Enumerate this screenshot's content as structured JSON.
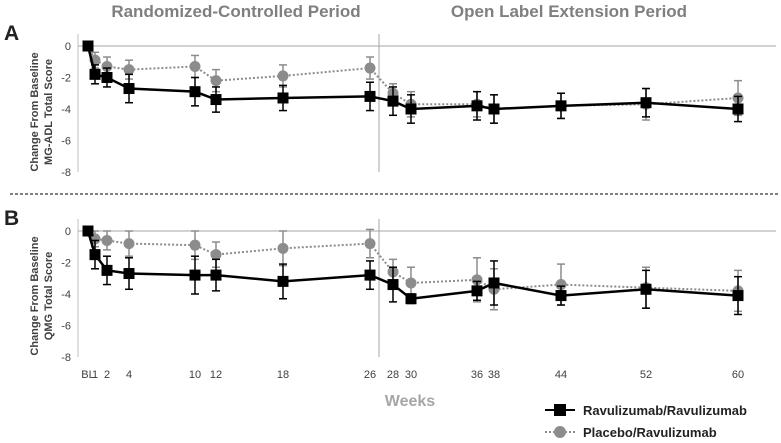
{
  "header": {
    "left_period": "Randomized-Controlled Period",
    "right_period": "Open Label Extension Period"
  },
  "x_axis_label": "Weeks",
  "colors": {
    "ravulizumab": "#000000",
    "placebo": "#8c8c8c",
    "period_divider": "#a6a6a6",
    "zero_line": "#a6a6a6"
  },
  "legend": [
    {
      "label": "Ravulizumab/Ravulizumab",
      "marker": "square",
      "line": "solid"
    },
    {
      "label": "Placebo/Ravulizumab",
      "marker": "circle",
      "line": "dotted"
    }
  ],
  "chart_data": [
    {
      "panel": "A",
      "type": "line",
      "ylabel": [
        "Change From Baseline",
        "MG-ADL Total Score"
      ],
      "xlabel": "Weeks",
      "ylim": [
        -8,
        0
      ],
      "yticks": [
        0,
        -2,
        -4,
        -6,
        -8
      ],
      "xticks": [
        "BL",
        "1",
        "2",
        "4",
        "10",
        "12",
        "18",
        "26",
        "28",
        "30",
        "36",
        "38",
        "44",
        "52",
        "60"
      ],
      "period_divider_after_week": 26,
      "series": [
        {
          "name": "Ravulizumab/Ravulizumab",
          "points": [
            {
              "x": "BL",
              "y": 0,
              "err": 0
            },
            {
              "x": "1",
              "y": -1.8,
              "err": 0.6
            },
            {
              "x": "2",
              "y": -2.0,
              "err": 0.6
            },
            {
              "x": "4",
              "y": -2.7,
              "err": 0.9
            },
            {
              "x": "10",
              "y": -2.9,
              "err": 0.9
            },
            {
              "x": "12",
              "y": -3.4,
              "err": 0.8
            },
            {
              "x": "18",
              "y": -3.3,
              "err": 0.8
            },
            {
              "x": "26",
              "y": -3.2,
              "err": 0.9
            },
            {
              "x": "28",
              "y": -3.5,
              "err": 0.9
            },
            {
              "x": "30",
              "y": -4.0,
              "err": 0.9
            },
            {
              "x": "36",
              "y": -3.8,
              "err": 0.9
            },
            {
              "x": "38",
              "y": -4.0,
              "err": 0.9
            },
            {
              "x": "44",
              "y": -3.8,
              "err": 0.8
            },
            {
              "x": "52",
              "y": -3.6,
              "err": 0.9
            },
            {
              "x": "60",
              "y": -4.0,
              "err": 0.8
            }
          ]
        },
        {
          "name": "Placebo/Ravulizumab",
          "points": [
            {
              "x": "BL",
              "y": 0,
              "err": 0
            },
            {
              "x": "1",
              "y": -0.9,
              "err": 0.5
            },
            {
              "x": "2",
              "y": -1.3,
              "err": 0.6
            },
            {
              "x": "4",
              "y": -1.5,
              "err": 0.6
            },
            {
              "x": "10",
              "y": -1.3,
              "err": 0.7
            },
            {
              "x": "12",
              "y": -2.2,
              "err": 0.7
            },
            {
              "x": "18",
              "y": -1.9,
              "err": 0.7
            },
            {
              "x": "26",
              "y": -1.4,
              "err": 0.7
            },
            {
              "x": "28",
              "y": -3.0,
              "err": 0.6
            },
            {
              "x": "30",
              "y": -3.7,
              "err": 0.8
            },
            {
              "x": "36",
              "y": -3.7,
              "err": 0.8
            },
            {
              "x": "38",
              "y": -4.0,
              "err": 0.9
            },
            {
              "x": "44",
              "y": -3.8,
              "err": 0.8
            },
            {
              "x": "52",
              "y": -3.7,
              "err": 1.0
            },
            {
              "x": "60",
              "y": -3.3,
              "err": 1.1
            }
          ]
        }
      ]
    },
    {
      "panel": "B",
      "type": "line",
      "ylabel": [
        "Change From Baseline",
        "QMG Total Score"
      ],
      "xlabel": "Weeks",
      "ylim": [
        -8,
        0
      ],
      "yticks": [
        0,
        -2,
        -4,
        -6,
        -8
      ],
      "xticks": [
        "BL",
        "1",
        "2",
        "4",
        "10",
        "12",
        "18",
        "26",
        "28",
        "30",
        "36",
        "38",
        "44",
        "52",
        "60"
      ],
      "period_divider_after_week": 26,
      "series": [
        {
          "name": "Ravulizumab/Ravulizumab",
          "points": [
            {
              "x": "BL",
              "y": 0,
              "err": 0
            },
            {
              "x": "1",
              "y": -1.5,
              "err": 0.9
            },
            {
              "x": "2",
              "y": -2.5,
              "err": 0.9
            },
            {
              "x": "4",
              "y": -2.7,
              "err": 1.0
            },
            {
              "x": "10",
              "y": -2.8,
              "err": 1.2
            },
            {
              "x": "12",
              "y": -2.8,
              "err": 1.0
            },
            {
              "x": "18",
              "y": -3.2,
              "err": 1.1
            },
            {
              "x": "26",
              "y": -2.8,
              "err": 0.9
            },
            {
              "x": "28",
              "y": -3.4,
              "err": 1.1
            },
            {
              "x": "30",
              "y": -4.3,
              "err": 0.3
            },
            {
              "x": "36",
              "y": -3.8,
              "err": 0.6
            },
            {
              "x": "38",
              "y": -3.3,
              "err": 1.4
            },
            {
              "x": "44",
              "y": -4.1,
              "err": 0.6
            },
            {
              "x": "52",
              "y": -3.7,
              "err": 1.2
            },
            {
              "x": "60",
              "y": -4.1,
              "err": 1.2
            }
          ]
        },
        {
          "name": "Placebo/Ravulizumab",
          "points": [
            {
              "x": "BL",
              "y": 0,
              "err": 0
            },
            {
              "x": "1",
              "y": -0.5,
              "err": 0.5
            },
            {
              "x": "2",
              "y": -0.6,
              "err": 0.6
            },
            {
              "x": "4",
              "y": -0.8,
              "err": 0.8
            },
            {
              "x": "10",
              "y": -0.9,
              "err": 0.9
            },
            {
              "x": "12",
              "y": -1.5,
              "err": 0.8
            },
            {
              "x": "18",
              "y": -1.1,
              "err": 1.1
            },
            {
              "x": "26",
              "y": -0.8,
              "err": 0.9
            },
            {
              "x": "28",
              "y": -2.6,
              "err": 0.8
            },
            {
              "x": "30",
              "y": -3.3,
              "err": 1.0
            },
            {
              "x": "36",
              "y": -3.1,
              "err": 1.4
            },
            {
              "x": "38",
              "y": -3.7,
              "err": 1.3
            },
            {
              "x": "44",
              "y": -3.4,
              "err": 1.3
            },
            {
              "x": "52",
              "y": -3.6,
              "err": 1.3
            },
            {
              "x": "60",
              "y": -3.8,
              "err": 1.3
            }
          ]
        }
      ]
    }
  ]
}
